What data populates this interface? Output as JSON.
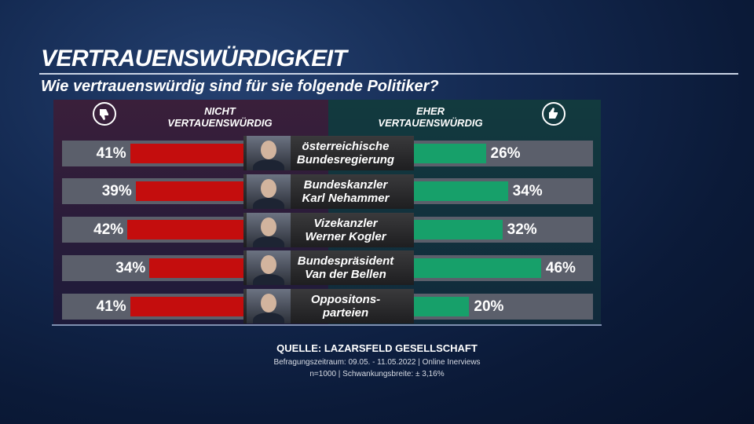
{
  "chart_data": {
    "type": "bar",
    "title": "VERTRAUENSWÜRDIGKEIT",
    "subtitle": "Wie vertrauenswürdig sind für sie folgende Politiker?",
    "categories": [
      [
        "österreichische",
        "Bundesregierung"
      ],
      [
        "Bundeskanzler",
        "Karl Nehammer"
      ],
      [
        "Vizekanzler",
        "Werner Kogler"
      ],
      [
        "Bundespräsident",
        "Van der Bellen"
      ],
      [
        "Oppositons-",
        "parteien"
      ]
    ],
    "series": [
      {
        "name": "NICHT VERTAUENSWÜRDIG",
        "color": "#c40d0d",
        "values": [
          41,
          39,
          42,
          34,
          41
        ],
        "value_labels": [
          "41%",
          "39%",
          "42%",
          "34%",
          "41%"
        ]
      },
      {
        "name": "EHER VERTAUENSWÜRDIG",
        "color": "#17a06a",
        "values": [
          26,
          34,
          32,
          46,
          20
        ],
        "value_labels": [
          "26%",
          "34%",
          "32%",
          "46%",
          "20%"
        ]
      }
    ],
    "source": "QUELLE:  LAZARSFELD GESELLSCHAFT",
    "notes": [
      "Befragungszeitraum: 09.05. - 11.05.2022 | Online Inerviews",
      "n=1000 |  Schwankungsbreite: ± 3,16%"
    ]
  }
}
